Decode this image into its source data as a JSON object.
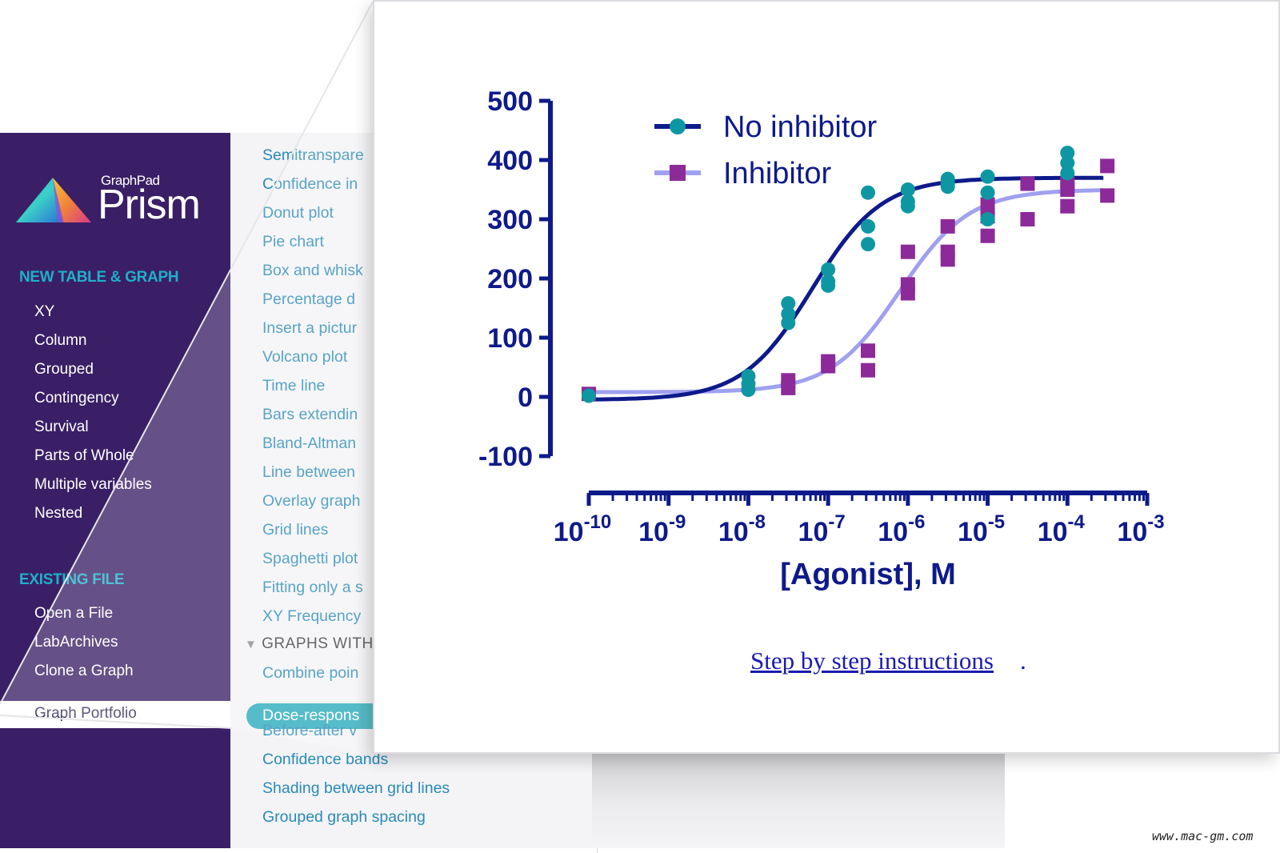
{
  "sidebar": {
    "brand_small": "GraphPad",
    "brand_big": "Prism",
    "new_heading": "NEW TABLE & GRAPH",
    "new_items": [
      "XY",
      "Column",
      "Grouped",
      "Contingency",
      "Survival",
      "Parts of Whole",
      "Multiple variables",
      "Nested"
    ],
    "existing_heading": "EXISTING FILE",
    "existing_items": [
      "Open a File",
      "LabArchives",
      "Clone a Graph"
    ],
    "selected_item": "Graph Portfolio"
  },
  "list": {
    "items_top": [
      "Semitranspare",
      "Confidence in",
      "Donut plot",
      "Pie chart",
      "Box and whisk",
      "Percentage d",
      "Insert a pictur",
      "Volcano plot",
      "Time line",
      "Bars extendin",
      "Bland-Altman",
      "Line between",
      "Overlay graph",
      "Grid lines",
      "Spaghetti plot",
      "Fitting only a s",
      "XY Frequency"
    ],
    "group_label": "GRAPHS WITH",
    "combine_item": "Combine poin",
    "selected_item": "Dose-respons",
    "partial_item": "Before-after v",
    "items_bottom": [
      "Confidence bands",
      "Shading between grid lines",
      "Grouped graph spacing"
    ]
  },
  "callout": {
    "link_text": "Step by step instructions",
    "link_suffix": "."
  },
  "watermark": "www.mac-gm.com",
  "chart_data": {
    "type": "scatter",
    "xlabel": "[Agonist], M",
    "ylabel": "",
    "x_scale": "log10",
    "xlim_exponents": [
      -10,
      -3
    ],
    "x_tick_exponents": [
      -10,
      -9,
      -8,
      -7,
      -6,
      -5,
      -4,
      -3
    ],
    "ylim": [
      -100,
      500
    ],
    "y_ticks": [
      -100,
      0,
      100,
      200,
      300,
      400,
      500
    ],
    "legend_position": "top-left",
    "grid": false,
    "series": [
      {
        "name": "No inhibitor",
        "color": "#0e1a8a",
        "marker": "circle",
        "marker_color": "#0e97a3",
        "fit": {
          "bottom": -5,
          "top": 370,
          "logEC50": -7.2,
          "hill": 1.0
        },
        "points": [
          [
            -10,
            2
          ],
          [
            -8,
            35
          ],
          [
            -8,
            22
          ],
          [
            -8,
            12
          ],
          [
            -7.5,
            158
          ],
          [
            -7.5,
            140
          ],
          [
            -7.5,
            125
          ],
          [
            -7,
            215
          ],
          [
            -7,
            195
          ],
          [
            -7,
            188
          ],
          [
            -6.5,
            345
          ],
          [
            -6.5,
            288
          ],
          [
            -6.5,
            258
          ],
          [
            -6,
            350
          ],
          [
            -6,
            330
          ],
          [
            -6,
            322
          ],
          [
            -5.5,
            368
          ],
          [
            -5.5,
            360
          ],
          [
            -5.5,
            355
          ],
          [
            -5,
            372
          ],
          [
            -5,
            345
          ],
          [
            -5,
            300
          ],
          [
            -4,
            412
          ],
          [
            -4,
            395
          ],
          [
            -4,
            378
          ]
        ]
      },
      {
        "name": "Inhibitor",
        "color": "#a0a0f0",
        "marker": "square",
        "marker_color": "#8c2a9a",
        "fit": {
          "bottom": 8,
          "top": 350,
          "logEC50": -6.1,
          "hill": 1.0
        },
        "points": [
          [
            -10,
            5
          ],
          [
            -7.5,
            28
          ],
          [
            -7.5,
            15
          ],
          [
            -7,
            60
          ],
          [
            -7,
            52
          ],
          [
            -6.5,
            78
          ],
          [
            -6.5,
            45
          ],
          [
            -6,
            245
          ],
          [
            -6,
            190
          ],
          [
            -6,
            175
          ],
          [
            -5.5,
            288
          ],
          [
            -5.5,
            245
          ],
          [
            -5.5,
            232
          ],
          [
            -5,
            325
          ],
          [
            -5,
            305
          ],
          [
            -5,
            272
          ],
          [
            -4.5,
            360
          ],
          [
            -4.5,
            300
          ],
          [
            -4,
            362
          ],
          [
            -4,
            350
          ],
          [
            -4,
            322
          ],
          [
            -3.5,
            390
          ],
          [
            -3.5,
            340
          ]
        ]
      }
    ]
  }
}
